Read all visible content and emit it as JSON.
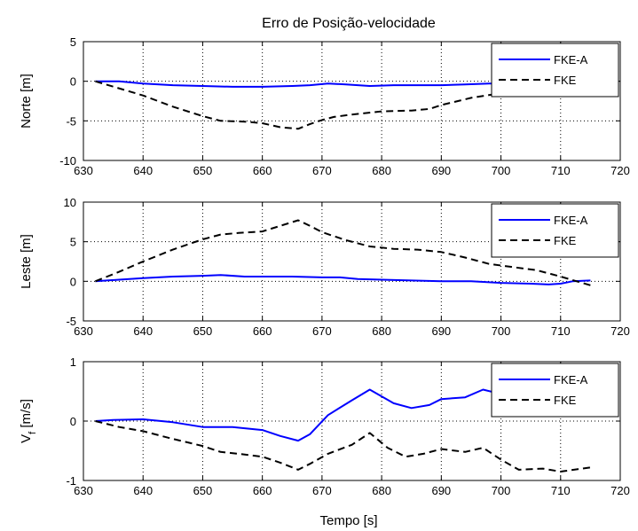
{
  "title": "Erro de Posição-velocidade",
  "xlabel": "Tempo [s]",
  "colors": {
    "fkea": "#0000ff",
    "fke": "#000000"
  },
  "chart_data": [
    {
      "type": "line",
      "title": "Erro de Posição-velocidade",
      "ylabel": "Norte [m]",
      "xlim": [
        630,
        720
      ],
      "ylim": [
        -10,
        5
      ],
      "xticks": [
        630,
        640,
        650,
        660,
        670,
        680,
        690,
        700,
        710,
        720
      ],
      "yticks": [
        -10,
        -5,
        0,
        5
      ],
      "grid": true,
      "legend": "top-right",
      "series": [
        {
          "name": "FKE-A",
          "style": "solid",
          "x": [
            632,
            636,
            640,
            645,
            650,
            655,
            660,
            665,
            668,
            671,
            674,
            678,
            682,
            686,
            690,
            694,
            698,
            702,
            706,
            710,
            714
          ],
          "y": [
            0,
            0,
            -0.3,
            -0.5,
            -0.6,
            -0.7,
            -0.7,
            -0.6,
            -0.5,
            -0.3,
            -0.4,
            -0.6,
            -0.5,
            -0.5,
            -0.5,
            -0.4,
            -0.3,
            -0.3,
            -0.2,
            -0.2,
            -0.1
          ]
        },
        {
          "name": "FKE",
          "style": "dashed",
          "x": [
            632,
            640,
            645,
            650,
            653,
            657,
            660,
            663,
            666,
            668,
            670,
            672,
            675,
            680,
            685,
            688,
            690,
            695,
            700,
            705,
            710,
            714
          ],
          "y": [
            0,
            -1.8,
            -3.2,
            -4.4,
            -5.0,
            -5.1,
            -5.3,
            -5.8,
            -6.0,
            -5.4,
            -4.9,
            -4.5,
            -4.2,
            -3.8,
            -3.7,
            -3.5,
            -3.0,
            -2.1,
            -1.5,
            -1.2,
            -1.0,
            -0.9
          ]
        }
      ]
    },
    {
      "type": "line",
      "ylabel": "Leste [m]",
      "xlim": [
        630,
        720
      ],
      "ylim": [
        -5,
        10
      ],
      "xticks": [
        630,
        640,
        650,
        660,
        670,
        680,
        690,
        700,
        710,
        720
      ],
      "yticks": [
        -5,
        0,
        5,
        10
      ],
      "grid": true,
      "legend": "top-right",
      "series": [
        {
          "name": "FKE-A",
          "style": "solid",
          "x": [
            632,
            636,
            640,
            645,
            650,
            653,
            657,
            660,
            665,
            670,
            673,
            676,
            680,
            685,
            690,
            695,
            700,
            705,
            708,
            710,
            712,
            715
          ],
          "y": [
            0,
            0.2,
            0.4,
            0.6,
            0.7,
            0.8,
            0.6,
            0.6,
            0.6,
            0.5,
            0.5,
            0.3,
            0.2,
            0.1,
            0.0,
            0.0,
            -0.2,
            -0.3,
            -0.4,
            -0.3,
            0.0,
            0.1
          ]
        },
        {
          "name": "FKE",
          "style": "dashed",
          "x": [
            632,
            636,
            640,
            645,
            650,
            653,
            656,
            660,
            663,
            666,
            668,
            670,
            674,
            678,
            682,
            686,
            690,
            694,
            698,
            702,
            706,
            710,
            715
          ],
          "y": [
            0,
            1.2,
            2.5,
            4.0,
            5.3,
            5.9,
            6.1,
            6.3,
            7.0,
            7.7,
            7.0,
            6.2,
            5.2,
            4.4,
            4.1,
            4.0,
            3.7,
            3.0,
            2.2,
            1.8,
            1.4,
            0.6,
            -0.5
          ]
        }
      ]
    },
    {
      "type": "line",
      "ylabel": "V",
      "ylabel_sub": "f",
      "ylabel_unit": " [m/s]",
      "xlim": [
        630,
        720
      ],
      "ylim": [
        -1,
        1
      ],
      "xticks": [
        630,
        640,
        650,
        660,
        670,
        680,
        690,
        700,
        710,
        720
      ],
      "yticks": [
        -1,
        0,
        1
      ],
      "grid": true,
      "legend": "top-right",
      "series": [
        {
          "name": "FKE-A",
          "style": "solid",
          "x": [
            632,
            635,
            640,
            645,
            650,
            655,
            660,
            663,
            666,
            668,
            671,
            675,
            678,
            682,
            685,
            688,
            690,
            694,
            697,
            699
          ],
          "y": [
            0,
            0.02,
            0.03,
            -0.02,
            -0.1,
            -0.1,
            -0.15,
            -0.25,
            -0.33,
            -0.22,
            0.1,
            0.35,
            0.53,
            0.3,
            0.22,
            0.27,
            0.37,
            0.4,
            0.53,
            0.48
          ]
        },
        {
          "name": "FKE",
          "style": "dashed",
          "x": [
            632,
            636,
            640,
            645,
            650,
            653,
            656,
            660,
            663,
            666,
            668,
            671,
            675,
            678,
            681,
            684,
            687,
            690,
            694,
            697,
            700,
            703,
            707,
            710,
            715
          ],
          "y": [
            0,
            -0.1,
            -0.17,
            -0.3,
            -0.42,
            -0.52,
            -0.55,
            -0.6,
            -0.7,
            -0.82,
            -0.72,
            -0.55,
            -0.4,
            -0.2,
            -0.45,
            -0.6,
            -0.55,
            -0.47,
            -0.52,
            -0.45,
            -0.65,
            -0.82,
            -0.8,
            -0.85,
            -0.78
          ]
        }
      ]
    }
  ]
}
